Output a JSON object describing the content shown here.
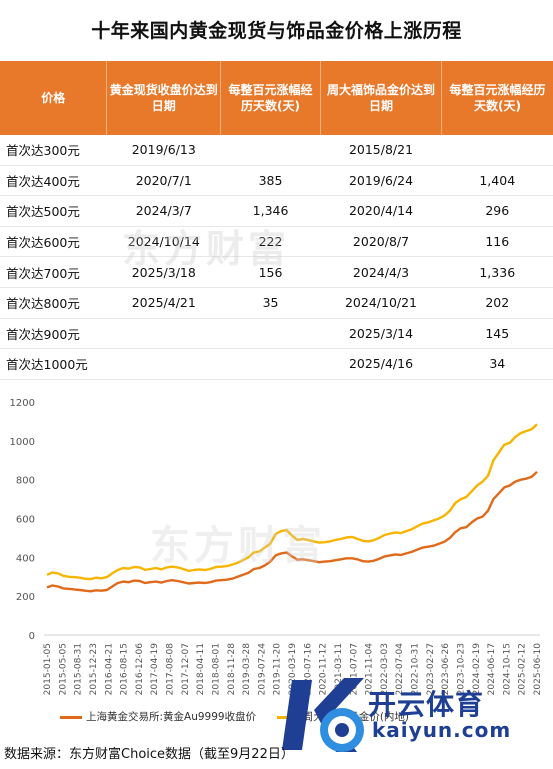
{
  "title": "十年来国内黄金现货与饰品金价格上涨历程",
  "table": {
    "headers": [
      "价格",
      "黄金现货收盘价达到日期",
      "每整百元涨幅经历天数(天)",
      "周大福饰品金价达到日期",
      "每整百元涨幅经历天数(天)"
    ],
    "rows": [
      [
        "首次达300元",
        "2019/6/13",
        "",
        "2015/8/21",
        ""
      ],
      [
        "首次达400元",
        "2020/7/1",
        "385",
        "2019/6/24",
        "1,404"
      ],
      [
        "首次达500元",
        "2024/3/7",
        "1,346",
        "2020/4/14",
        "296"
      ],
      [
        "首次达600元",
        "2024/10/14",
        "222",
        "2020/8/7",
        "116"
      ],
      [
        "首次达700元",
        "2025/3/18",
        "156",
        "2024/4/3",
        "1,336"
      ],
      [
        "首次达800元",
        "2025/4/21",
        "35",
        "2024/10/21",
        "202"
      ],
      [
        "首次达900元",
        "",
        "",
        "2025/3/14",
        "145"
      ],
      [
        "首次达1000元",
        "",
        "",
        "2025/4/16",
        "34"
      ]
    ]
  },
  "watermark": "东方财富",
  "chart_data": {
    "type": "line",
    "ylim": [
      0,
      1200
    ],
    "yticks": [
      0,
      200,
      400,
      600,
      800,
      1000,
      1200
    ],
    "x_tick_labels": [
      "2015-01-05",
      "2015-05-05",
      "2015-08-31",
      "2015-12-23",
      "2016-04-21",
      "2016-08-15",
      "2016-12-06",
      "2017-04-19",
      "2017-08-08",
      "2017-12-07",
      "2018-04-11",
      "2018-08-01",
      "2018-11-28",
      "2019-03-28",
      "2019-07-24",
      "2019-11-20",
      "2020-03-19",
      "2020-07-16",
      "2020-11-12",
      "2021-03-11",
      "2021-07-07",
      "2021-11-04",
      "2022-03-03",
      "2022-07-04",
      "2022-10-31",
      "2023-02-27",
      "2023-06-26",
      "2023-10-23",
      "2024-02-19",
      "2024-06-17",
      "2024-10-15",
      "2025-02-12",
      "2025-06-10"
    ],
    "grid": false,
    "legend_position": "bottom",
    "series": [
      {
        "name": "上海黄金交易所:黄金Au9999收盘价",
        "color": "#e06a1b",
        "values": [
          245,
          255,
          250,
          240,
          238,
          235,
          232,
          228,
          225,
          230,
          228,
          232,
          250,
          268,
          275,
          272,
          280,
          278,
          268,
          272,
          275,
          270,
          278,
          282,
          278,
          272,
          265,
          268,
          270,
          268,
          272,
          280,
          282,
          285,
          290,
          300,
          310,
          320,
          340,
          345,
          358,
          378,
          410,
          420,
          425,
          405,
          388,
          390,
          385,
          380,
          375,
          378,
          380,
          385,
          390,
          395,
          395,
          390,
          380,
          378,
          382,
          392,
          405,
          410,
          415,
          412,
          420,
          428,
          440,
          450,
          455,
          460,
          470,
          480,
          500,
          530,
          550,
          555,
          580,
          600,
          610,
          640,
          700,
          730,
          760,
          770,
          790,
          800,
          805,
          815,
          840
        ]
      },
      {
        "name": "周大福:饰品金价(内地)",
        "color": "#f7b500",
        "values": [
          310,
          322,
          318,
          305,
          300,
          298,
          295,
          290,
          288,
          295,
          292,
          298,
          318,
          335,
          345,
          342,
          350,
          348,
          336,
          340,
          345,
          338,
          348,
          352,
          348,
          340,
          330,
          335,
          338,
          335,
          340,
          350,
          352,
          355,
          362,
          372,
          385,
          400,
          425,
          430,
          450,
          470,
          520,
          535,
          540,
          512,
          490,
          495,
          488,
          482,
          476,
          478,
          482,
          490,
          495,
          502,
          505,
          495,
          485,
          482,
          488,
          500,
          515,
          522,
          528,
          525,
          535,
          545,
          560,
          575,
          580,
          590,
          600,
          615,
          640,
          680,
          700,
          710,
          740,
          770,
          790,
          820,
          900,
          940,
          980,
          990,
          1020,
          1040,
          1050,
          1060,
          1085
        ]
      }
    ]
  },
  "legend": {
    "series1": "上海黄金交易所:黄金Au9999收盘价",
    "series2": "周大福:饰品金价(内地)"
  },
  "source": "数据来源：东方财富Choice数据（截至9月22日）",
  "logo": {
    "main": "开云体育",
    "sub": "kaiyun.com",
    "icon": "ky-logo-icon"
  }
}
